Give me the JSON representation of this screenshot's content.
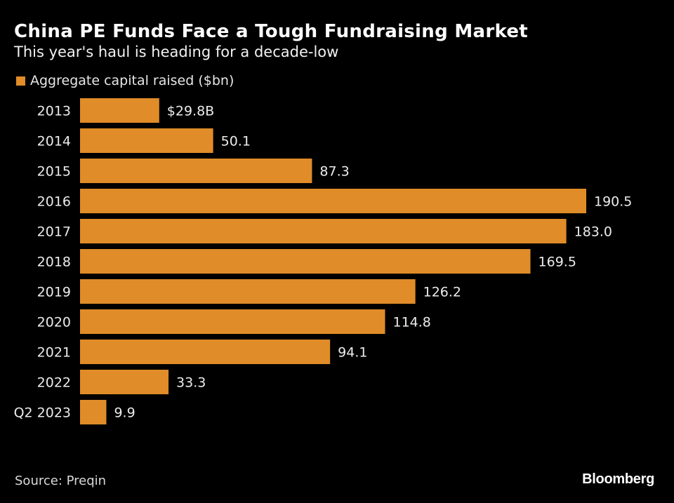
{
  "chart_data": {
    "type": "bar",
    "orientation": "horizontal",
    "title": "China PE Funds Face a Tough Fundraising Market",
    "subtitle": "This year's haul is heading for a decade-low",
    "legend": [
      "Aggregate capital raised ($bn)"
    ],
    "categories": [
      "2013",
      "2014",
      "2015",
      "2016",
      "2017",
      "2018",
      "2019",
      "2020",
      "2021",
      "2022",
      "Q2 2023"
    ],
    "values": [
      29.8,
      50.1,
      87.3,
      190.5,
      183.0,
      169.5,
      126.2,
      114.8,
      94.1,
      33.3,
      9.9
    ],
    "value_labels": [
      "$29.8B",
      "50.1",
      "87.3",
      "190.5",
      "183.0",
      "169.5",
      "126.2",
      "114.8",
      "94.1",
      "33.3",
      "9.9"
    ],
    "xlim": [
      0,
      190.5
    ],
    "grid": false,
    "color": "#e08c28"
  },
  "footer": {
    "source": "Source: Preqin",
    "logo": "Bloomberg"
  }
}
